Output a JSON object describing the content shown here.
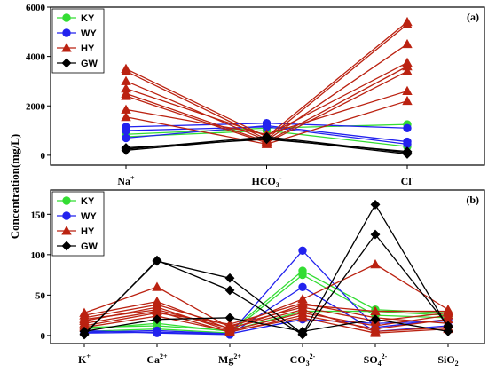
{
  "ylabel": "Concentration(mg/L)",
  "colors": {
    "KY": "#33dd33",
    "WY": "#2222ee",
    "HY": "#bb2211",
    "GW": "#000000"
  },
  "markers": {
    "KY": "circle",
    "WY": "circle",
    "HY": "triangle",
    "GW": "diamond"
  },
  "chart_data": [
    {
      "type": "line",
      "panel_label": "(a)",
      "categories": [
        {
          "base": "Na",
          "sup": "+",
          "sub": ""
        },
        {
          "base": "HCO",
          "sub": "3",
          "sup": "-"
        },
        {
          "base": "Cl",
          "sup": "-",
          "sub": ""
        }
      ],
      "ylim": [
        -400,
        6000
      ],
      "yticks": [
        0,
        2000,
        4000,
        6000
      ],
      "legend": [
        "KY",
        "WY",
        "HY",
        "GW"
      ],
      "legend_position": "top-left",
      "series": [
        {
          "name": "KY",
          "values": [
            850,
            1100,
            1250
          ]
        },
        {
          "name": "KY",
          "values": [
            750,
            1000,
            350
          ]
        },
        {
          "name": "WY",
          "values": [
            1150,
            1300,
            1100
          ]
        },
        {
          "name": "WY",
          "values": [
            700,
            1200,
            550
          ]
        },
        {
          "name": "WY",
          "values": [
            1000,
            1150,
            450
          ]
        },
        {
          "name": "HY",
          "values": [
            3500,
            750,
            5400
          ]
        },
        {
          "name": "HY",
          "values": [
            3400,
            650,
            5300
          ]
        },
        {
          "name": "HY",
          "values": [
            3000,
            600,
            4500
          ]
        },
        {
          "name": "HY",
          "values": [
            2700,
            800,
            3750
          ]
        },
        {
          "name": "HY",
          "values": [
            2500,
            550,
            3600
          ]
        },
        {
          "name": "HY",
          "values": [
            2400,
            500,
            3400
          ]
        },
        {
          "name": "HY",
          "values": [
            1850,
            850,
            2600
          ]
        },
        {
          "name": "HY",
          "values": [
            1550,
            450,
            2200
          ]
        },
        {
          "name": "GW",
          "values": [
            250,
            750,
            100
          ]
        },
        {
          "name": "GW",
          "values": [
            200,
            700,
            50
          ]
        },
        {
          "name": "GW",
          "values": [
            300,
            650,
            150
          ]
        }
      ]
    },
    {
      "type": "line",
      "panel_label": "(b)",
      "categories": [
        {
          "base": "K",
          "sup": "+",
          "sub": ""
        },
        {
          "base": "Ca",
          "sup": "2+",
          "sub": ""
        },
        {
          "base": "Mg",
          "sup": "2+",
          "sub": ""
        },
        {
          "base": "CO",
          "sub": "3",
          "sup": "2-"
        },
        {
          "base": "SO",
          "sub": "4",
          "sup": "2-"
        },
        {
          "base": "SiO",
          "sub": "2",
          "sup": ""
        }
      ],
      "ylim": [
        -10,
        180
      ],
      "yticks": [
        0,
        50,
        100,
        150
      ],
      "legend": [
        "KY",
        "WY",
        "HY",
        "GW"
      ],
      "legend_position": "top-left",
      "series": [
        {
          "name": "KY",
          "values": [
            8,
            15,
            5,
            80,
            32,
            28
          ]
        },
        {
          "name": "KY",
          "values": [
            5,
            8,
            3,
            75,
            25,
            22
          ]
        },
        {
          "name": "KY",
          "values": [
            10,
            12,
            6,
            30,
            30,
            25
          ]
        },
        {
          "name": "WY",
          "values": [
            3,
            4,
            2,
            105,
            10,
            20
          ]
        },
        {
          "name": "WY",
          "values": [
            6,
            3,
            1,
            60,
            5,
            12
          ]
        },
        {
          "name": "WY",
          "values": [
            4,
            6,
            2,
            20,
            15,
            18
          ]
        },
        {
          "name": "HY",
          "values": [
            28,
            60,
            10,
            45,
            88,
            32
          ]
        },
        {
          "name": "HY",
          "values": [
            25,
            42,
            8,
            38,
            30,
            30
          ]
        },
        {
          "name": "HY",
          "values": [
            22,
            38,
            12,
            35,
            18,
            28
          ]
        },
        {
          "name": "HY",
          "values": [
            18,
            35,
            6,
            28,
            12,
            25
          ]
        },
        {
          "name": "HY",
          "values": [
            15,
            30,
            4,
            25,
            8,
            20
          ]
        },
        {
          "name": "HY",
          "values": [
            12,
            28,
            14,
            40,
            22,
            15
          ]
        },
        {
          "name": "HY",
          "values": [
            20,
            32,
            9,
            32,
            5,
            10
          ]
        },
        {
          "name": "HY",
          "values": [
            10,
            24,
            5,
            22,
            3,
            8
          ]
        },
        {
          "name": "GW",
          "values": [
            2,
            92,
            71,
            2,
            162,
            10
          ]
        },
        {
          "name": "GW",
          "values": [
            1,
            93,
            56,
            1,
            125,
            12
          ]
        },
        {
          "name": "GW",
          "values": [
            5,
            20,
            22,
            5,
            20,
            5
          ]
        }
      ]
    }
  ]
}
